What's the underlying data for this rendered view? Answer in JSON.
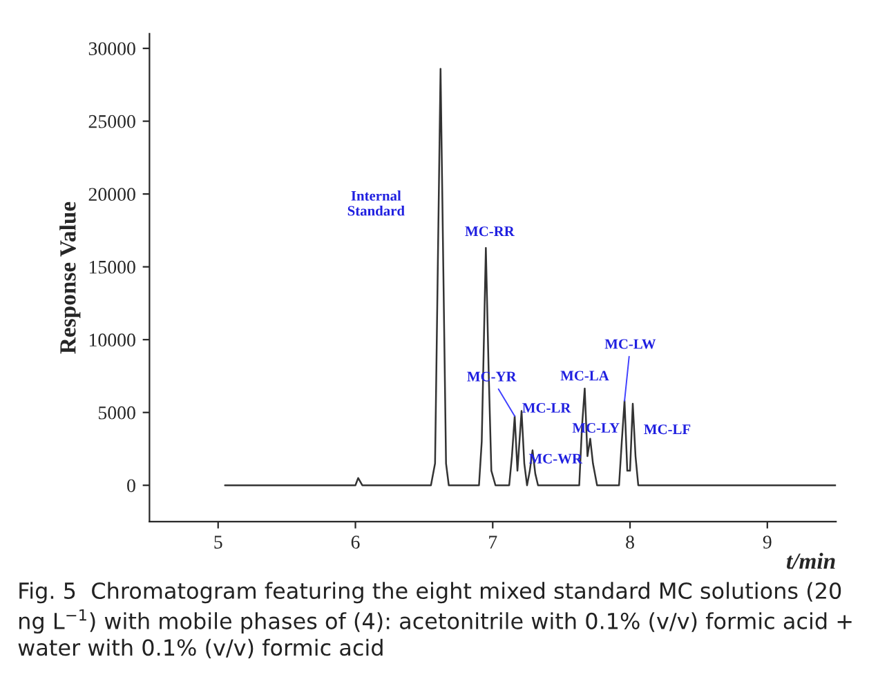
{
  "chart_data": {
    "type": "line",
    "xlabel": "t/min",
    "ylabel": "Response Value",
    "xlim": [
      4.5,
      9.5
    ],
    "xticks": [
      5,
      6,
      7,
      8,
      9
    ],
    "ylim": [
      -2500,
      31000
    ],
    "yticks": [
      0,
      5000,
      10000,
      15000,
      20000,
      25000,
      30000
    ],
    "x": [
      5.05,
      5.5,
      5.65,
      5.7,
      6.0,
      6.02,
      6.05,
      6.55,
      6.58,
      6.6,
      6.62,
      6.64,
      6.66,
      6.68,
      6.9,
      6.92,
      6.95,
      6.97,
      6.99,
      7.02,
      7.12,
      7.14,
      7.16,
      7.18,
      7.21,
      7.23,
      7.25,
      7.27,
      7.29,
      7.31,
      7.33,
      7.63,
      7.65,
      7.67,
      7.69,
      7.71,
      7.73,
      7.76,
      7.92,
      7.94,
      7.96,
      7.98,
      8.0,
      8.02,
      8.04,
      8.06,
      8.5,
      9.0,
      9.5
    ],
    "series": [
      {
        "color": "#333333",
        "values": [
          0,
          0,
          0,
          0,
          0,
          500,
          0,
          0,
          1500,
          15000,
          28600,
          15000,
          1500,
          0,
          0,
          3000,
          16300,
          8000,
          1000,
          0,
          0,
          2000,
          4750,
          1000,
          5100,
          1500,
          0,
          1000,
          2400,
          800,
          0,
          0,
          4000,
          6650,
          2000,
          3200,
          1500,
          0,
          0,
          3000,
          5800,
          1000,
          1000,
          5600,
          2000,
          0,
          0,
          0,
          0
        ]
      }
    ],
    "marker": "none",
    "line_style": "solid",
    "legend": false,
    "annotations": [
      "Internal\nStandard",
      {
        "text": "MC-RR",
        "x": 6.95,
        "y": 16300
      },
      {
        "text": "MC-YR",
        "x": 7.16,
        "y": 4750
      },
      {
        "text": "MC-LR",
        "x": 7.21,
        "y": 5100
      },
      {
        "text": "MC-WR",
        "x": 7.29,
        "y": 2400
      },
      {
        "text": "MC-LA",
        "x": 7.67,
        "y": 6650
      },
      {
        "text": "MC-LY",
        "x": 7.71,
        "y": 3200
      },
      {
        "text": "MC-LW",
        "x": 7.96,
        "y": 5800
      },
      {
        "text": "MC-LF",
        "x": 8.02,
        "y": 5600
      },
      "Fig. 5  Chromatogram featuring the eight mixed standard MC solutions (20 ng L$^{−1}$) with mobile phases of (4): acetonitrile with 0.1% (v/v) formic acid + water with 0.1% (v/v) formic acid"
    ]
  }
}
